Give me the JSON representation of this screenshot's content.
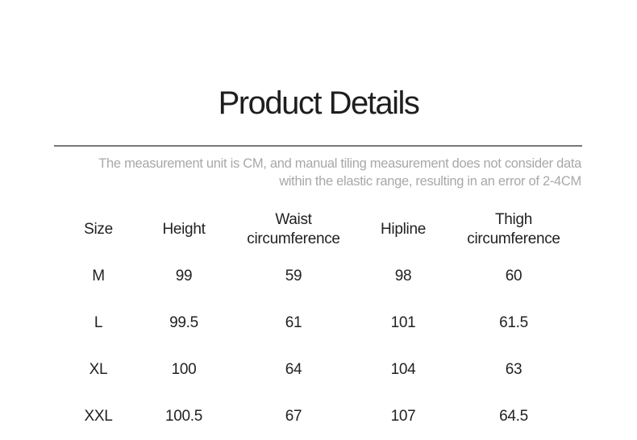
{
  "title": "Product Details",
  "note": "The measurement unit is CM, and manual tiling measurement does not consider data within the elastic range, resulting in an error of 2-4CM",
  "headers": [
    "Size",
    "Height",
    "Waist circumference",
    "Hipline",
    "Thigh circumference"
  ],
  "rows": [
    [
      "M",
      "99",
      "59",
      "98",
      "60"
    ],
    [
      "L",
      "99.5",
      "61",
      "101",
      "61.5"
    ],
    [
      "XL",
      "100",
      "64",
      "104",
      "63"
    ],
    [
      "XXL",
      "100.5",
      "67",
      "107",
      "64.5"
    ]
  ]
}
